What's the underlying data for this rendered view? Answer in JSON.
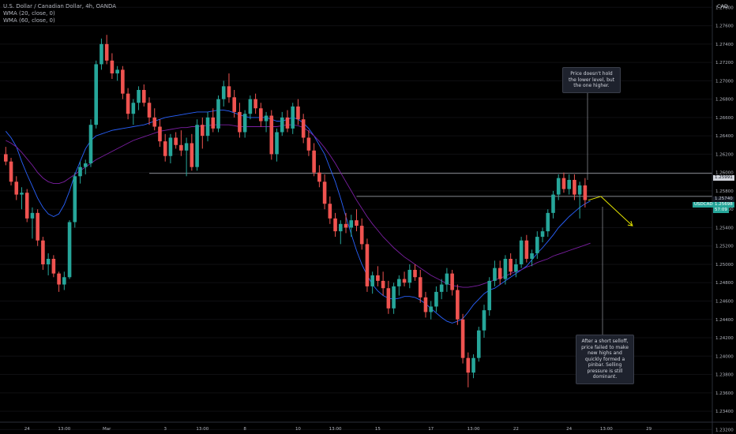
{
  "header": {
    "title": "U.S. Dollar / Canadian Dollar, 4h, OANDA",
    "ind1": "WMA (20, close, 0)",
    "ind2": "WMA (60, close, 0)"
  },
  "currency": "CAD",
  "colors": {
    "up": "#26a69a",
    "down": "#ef5350",
    "wma20": "#2962ff",
    "wma60": "#7b1fa2",
    "projection": "#e6e600",
    "level": "#b2b5be"
  },
  "annotations": {
    "top": "Price doesn't hold the lower level, but the one higher.",
    "bottom": "After a short selloff, price failed to make new highs and quickly formed a pinbar. Selling pressure is still dominant."
  },
  "price_tags": {
    "level_upper": "1.25991",
    "symbol": "USDCAD",
    "current": "1.25698",
    "countdown": "57:09",
    "level_lower": "1.25740"
  },
  "chart_data": {
    "type": "candlestick",
    "title": "U.S. Dollar / Canadian Dollar, 4h, OANDA",
    "y_axis_ticks": [
      "1.27800",
      "1.27600",
      "1.27400",
      "1.27200",
      "1.27000",
      "1.26800",
      "1.26600",
      "1.26400",
      "1.26200",
      "1.26000",
      "1.25800",
      "1.25600",
      "1.25400",
      "1.25200",
      "1.25000",
      "1.24800",
      "1.24600",
      "1.24400",
      "1.24200",
      "1.24000",
      "1.23800",
      "1.23600",
      "1.23400",
      "1.23200"
    ],
    "ylim": [
      1.2316,
      1.2788
    ],
    "x_axis_ticks": [
      {
        "label": "24",
        "idx": 4
      },
      {
        "label": "13:00",
        "idx": 11
      },
      {
        "label": "Mar",
        "idx": 19
      },
      {
        "label": "3",
        "idx": 30
      },
      {
        "label": "13:00",
        "idx": 37
      },
      {
        "label": "8",
        "idx": 45
      },
      {
        "label": "10",
        "idx": 55
      },
      {
        "label": "13:00",
        "idx": 62
      },
      {
        "label": "15",
        "idx": 70
      },
      {
        "label": "17",
        "idx": 80
      },
      {
        "label": "13:00",
        "idx": 88
      },
      {
        "label": "22",
        "idx": 96
      },
      {
        "label": "24",
        "idx": 106
      },
      {
        "label": "13:00",
        "idx": 113
      },
      {
        "label": "29",
        "idx": 121
      }
    ],
    "horizontal_levels": [
      1.25991,
      1.2574
    ],
    "current_price": 1.25698,
    "series": [
      {
        "name": "WMA (20, close, 0)",
        "values": [
          1.2645,
          1.2638,
          1.2628,
          1.2612,
          1.2598,
          1.2585,
          1.2572,
          1.2562,
          1.2555,
          1.2552,
          1.2555,
          1.2565,
          1.258,
          1.2598,
          1.2612,
          1.2626,
          1.2635,
          1.264,
          1.2642,
          1.2644,
          1.2646,
          1.2647,
          1.2648,
          1.2649,
          1.265,
          1.2651,
          1.2652,
          1.2654,
          1.2656,
          1.2658,
          1.266,
          1.2661,
          1.2662,
          1.2663,
          1.2664,
          1.2665,
          1.2666,
          1.2666,
          1.2666,
          1.2667,
          1.2668,
          1.2668,
          1.2667,
          1.2665,
          1.2663,
          1.2661,
          1.266,
          1.266,
          1.266,
          1.266,
          1.2658,
          1.2656,
          1.2656,
          1.2658,
          1.266,
          1.2658,
          1.2654,
          1.2648,
          1.264,
          1.263,
          1.262,
          1.2605,
          1.259,
          1.2572,
          1.2552,
          1.2533,
          1.2515,
          1.25,
          1.2488,
          1.2478,
          1.2471,
          1.2466,
          1.2463,
          1.2462,
          1.2463,
          1.2465,
          1.2465,
          1.2464,
          1.2461,
          1.2457,
          1.2452,
          1.2447,
          1.2442,
          1.2438,
          1.2436,
          1.2438,
          1.2441,
          1.2448,
          1.2456,
          1.2462,
          1.2468,
          1.2472,
          1.2474,
          1.2478,
          1.2482,
          1.2486,
          1.249,
          1.2494,
          1.2498,
          1.2505,
          1.2512,
          1.2518,
          1.2525,
          1.2532,
          1.254,
          1.2546,
          1.2552,
          1.2557,
          1.2562,
          1.2566,
          1.2569
        ]
      },
      {
        "name": "WMA (60, close, 0)",
        "values": [
          1.2635,
          1.2632,
          1.2628,
          1.2622,
          1.2615,
          1.2608,
          1.26,
          1.2594,
          1.259,
          1.2588,
          1.2588,
          1.259,
          1.2594,
          1.2598,
          1.2602,
          1.2606,
          1.261,
          1.2614,
          1.2617,
          1.262,
          1.2623,
          1.2626,
          1.2629,
          1.2632,
          1.2635,
          1.2637,
          1.2639,
          1.2641,
          1.2643,
          1.2645,
          1.2646,
          1.2647,
          1.2648,
          1.2649,
          1.2649,
          1.265,
          1.265,
          1.2651,
          1.2651,
          1.2652,
          1.2652,
          1.2652,
          1.2652,
          1.2651,
          1.265,
          1.265,
          1.265,
          1.265,
          1.265,
          1.265,
          1.265,
          1.265,
          1.2651,
          1.2652,
          1.2652,
          1.2651,
          1.2649,
          1.2645,
          1.264,
          1.2634,
          1.2627,
          1.2619,
          1.261,
          1.26,
          1.259,
          1.258,
          1.257,
          1.2561,
          1.2552,
          1.2544,
          1.2537,
          1.253,
          1.2524,
          1.2518,
          1.2513,
          1.2508,
          1.2504,
          1.25,
          1.2496,
          1.2492,
          1.2488,
          1.2485,
          1.2482,
          1.2479,
          1.2477,
          1.2476,
          1.2475,
          1.2475,
          1.2476,
          1.2477,
          1.2479,
          1.2481,
          1.2483,
          1.2485,
          1.2487,
          1.249,
          1.2492,
          1.2494,
          1.2497,
          1.2499,
          1.2502,
          1.2504,
          1.2506,
          1.2509,
          1.2511,
          1.2513,
          1.2515,
          1.2517,
          1.2519,
          1.2521,
          1.2523
        ]
      }
    ],
    "candles": [
      [
        1.262,
        1.2628,
        1.2608,
        1.2612
      ],
      [
        1.2612,
        1.2616,
        1.2586,
        1.259
      ],
      [
        1.259,
        1.2596,
        1.257,
        1.2576
      ],
      [
        1.2576,
        1.2584,
        1.256,
        1.2578
      ],
      [
        1.2578,
        1.2582,
        1.2546,
        1.255
      ],
      [
        1.255,
        1.2562,
        1.2528,
        1.2556
      ],
      [
        1.2556,
        1.256,
        1.252,
        1.2526
      ],
      [
        1.2526,
        1.253,
        1.2494,
        1.25
      ],
      [
        1.25,
        1.2512,
        1.2488,
        1.2506
      ],
      [
        1.2506,
        1.251,
        1.2486,
        1.249
      ],
      [
        1.249,
        1.2492,
        1.247,
        1.2478
      ],
      [
        1.2478,
        1.2492,
        1.2472,
        1.2486
      ],
      [
        1.2486,
        1.2548,
        1.2484,
        1.2546
      ],
      [
        1.2546,
        1.26,
        1.254,
        1.2596
      ],
      [
        1.2596,
        1.2612,
        1.2588,
        1.2606
      ],
      [
        1.2606,
        1.2614,
        1.2598,
        1.261
      ],
      [
        1.261,
        1.2658,
        1.2606,
        1.2652
      ],
      [
        1.2652,
        1.2722,
        1.2648,
        1.2718
      ],
      [
        1.2718,
        1.2746,
        1.2712,
        1.274
      ],
      [
        1.274,
        1.275,
        1.2718,
        1.2722
      ],
      [
        1.2722,
        1.273,
        1.2702,
        1.2708
      ],
      [
        1.2708,
        1.2716,
        1.27,
        1.2712
      ],
      [
        1.2712,
        1.2716,
        1.268,
        1.2686
      ],
      [
        1.2686,
        1.2692,
        1.2658,
        1.2664
      ],
      [
        1.2664,
        1.268,
        1.2652,
        1.2676
      ],
      [
        1.2676,
        1.2694,
        1.2668,
        1.269
      ],
      [
        1.269,
        1.2696,
        1.2672,
        1.2676
      ],
      [
        1.2676,
        1.2682,
        1.2652,
        1.266
      ],
      [
        1.266,
        1.267,
        1.2646,
        1.265
      ],
      [
        1.265,
        1.2658,
        1.2628,
        1.2634
      ],
      [
        1.2634,
        1.2642,
        1.2612,
        1.2618
      ],
      [
        1.2618,
        1.2642,
        1.261,
        1.2638
      ],
      [
        1.2638,
        1.2644,
        1.2626,
        1.263
      ],
      [
        1.263,
        1.2646,
        1.2618,
        1.2624
      ],
      [
        1.2624,
        1.2638,
        1.2596,
        1.2632
      ],
      [
        1.2632,
        1.2642,
        1.2602,
        1.2606
      ],
      [
        1.2606,
        1.2658,
        1.2602,
        1.2652
      ],
      [
        1.2652,
        1.266,
        1.2626,
        1.264
      ],
      [
        1.264,
        1.2666,
        1.2634,
        1.266
      ],
      [
        1.266,
        1.267,
        1.2644,
        1.2648
      ],
      [
        1.2648,
        1.2684,
        1.2644,
        1.268
      ],
      [
        1.268,
        1.27,
        1.2672,
        1.2694
      ],
      [
        1.2694,
        1.2708,
        1.2676,
        1.2682
      ],
      [
        1.2682,
        1.269,
        1.266,
        1.2666
      ],
      [
        1.2666,
        1.2676,
        1.2638,
        1.2644
      ],
      [
        1.2644,
        1.2668,
        1.2638,
        1.2664
      ],
      [
        1.2664,
        1.2684,
        1.2658,
        1.268
      ],
      [
        1.268,
        1.2686,
        1.2664,
        1.267
      ],
      [
        1.267,
        1.2676,
        1.265,
        1.2656
      ],
      [
        1.2656,
        1.2666,
        1.2644,
        1.2662
      ],
      [
        1.2662,
        1.2668,
        1.2614,
        1.262
      ],
      [
        1.262,
        1.2648,
        1.2612,
        1.2644
      ],
      [
        1.2644,
        1.2666,
        1.264,
        1.266
      ],
      [
        1.266,
        1.2668,
        1.2644,
        1.2648
      ],
      [
        1.2648,
        1.2676,
        1.2642,
        1.2672
      ],
      [
        1.2672,
        1.268,
        1.2652,
        1.2658
      ],
      [
        1.2658,
        1.2664,
        1.2632,
        1.2638
      ],
      [
        1.2638,
        1.2646,
        1.2618,
        1.2624
      ],
      [
        1.2624,
        1.2632,
        1.2596,
        1.26
      ],
      [
        1.26,
        1.2608,
        1.2584,
        1.259
      ],
      [
        1.259,
        1.2598,
        1.256,
        1.2566
      ],
      [
        1.2566,
        1.2574,
        1.2544,
        1.255
      ],
      [
        1.255,
        1.2556,
        1.253,
        1.2536
      ],
      [
        1.2536,
        1.2548,
        1.2522,
        1.2544
      ],
      [
        1.2544,
        1.2556,
        1.2534,
        1.254
      ],
      [
        1.254,
        1.2554,
        1.253,
        1.2548
      ],
      [
        1.2548,
        1.256,
        1.2536,
        1.2542
      ],
      [
        1.2542,
        1.255,
        1.2516,
        1.2522
      ],
      [
        1.2522,
        1.2528,
        1.247,
        1.2476
      ],
      [
        1.2476,
        1.2492,
        1.2468,
        1.2488
      ],
      [
        1.2488,
        1.2498,
        1.2476,
        1.2482
      ],
      [
        1.2482,
        1.2492,
        1.2466,
        1.2474
      ],
      [
        1.2474,
        1.2482,
        1.2446,
        1.2452
      ],
      [
        1.2452,
        1.248,
        1.2446,
        1.2476
      ],
      [
        1.2476,
        1.2488,
        1.2466,
        1.2484
      ],
      [
        1.2484,
        1.2492,
        1.2476,
        1.248
      ],
      [
        1.248,
        1.25,
        1.2474,
        1.2494
      ],
      [
        1.2494,
        1.25,
        1.2482,
        1.2486
      ],
      [
        1.2486,
        1.2494,
        1.2458,
        1.2464
      ],
      [
        1.2464,
        1.247,
        1.2442,
        1.2448
      ],
      [
        1.2448,
        1.246,
        1.244,
        1.2454
      ],
      [
        1.2454,
        1.2476,
        1.2448,
        1.247
      ],
      [
        1.247,
        1.2484,
        1.2462,
        1.2478
      ],
      [
        1.2478,
        1.2496,
        1.247,
        1.249
      ],
      [
        1.249,
        1.2494,
        1.2466,
        1.2472
      ],
      [
        1.2472,
        1.2478,
        1.2434,
        1.244
      ],
      [
        1.244,
        1.2446,
        1.2392,
        1.2398
      ],
      [
        1.2398,
        1.2404,
        1.2366,
        1.2382
      ],
      [
        1.2382,
        1.2402,
        1.2376,
        1.2398
      ],
      [
        1.2398,
        1.2432,
        1.2394,
        1.2428
      ],
      [
        1.2428,
        1.2456,
        1.242,
        1.245
      ],
      [
        1.245,
        1.2486,
        1.2444,
        1.2482
      ],
      [
        1.2482,
        1.2504,
        1.2476,
        1.2496
      ],
      [
        1.2496,
        1.2504,
        1.2478,
        1.2484
      ],
      [
        1.2484,
        1.251,
        1.2478,
        1.2506
      ],
      [
        1.2506,
        1.2512,
        1.2488,
        1.2492
      ],
      [
        1.2492,
        1.2506,
        1.2486,
        1.25
      ],
      [
        1.25,
        1.253,
        1.2496,
        1.2526
      ],
      [
        1.2526,
        1.2532,
        1.2502,
        1.2506
      ],
      [
        1.2506,
        1.2516,
        1.2498,
        1.2512
      ],
      [
        1.2512,
        1.2536,
        1.2506,
        1.253
      ],
      [
        1.253,
        1.254,
        1.2524,
        1.2536
      ],
      [
        1.2536,
        1.256,
        1.253,
        1.2556
      ],
      [
        1.2556,
        1.258,
        1.255,
        1.2576
      ],
      [
        1.2576,
        1.2598,
        1.257,
        1.2594
      ],
      [
        1.2594,
        1.26,
        1.2578,
        1.2582
      ],
      [
        1.2582,
        1.2598,
        1.2576,
        1.2592
      ],
      [
        1.2592,
        1.2598,
        1.257,
        1.2576
      ],
      [
        1.2576,
        1.259,
        1.255,
        1.2586
      ],
      [
        1.2586,
        1.2594,
        1.2562,
        1.257
      ]
    ],
    "projection": [
      [
        1.25698
      ],
      [
        1.2574
      ],
      [
        1.2542
      ]
    ]
  }
}
